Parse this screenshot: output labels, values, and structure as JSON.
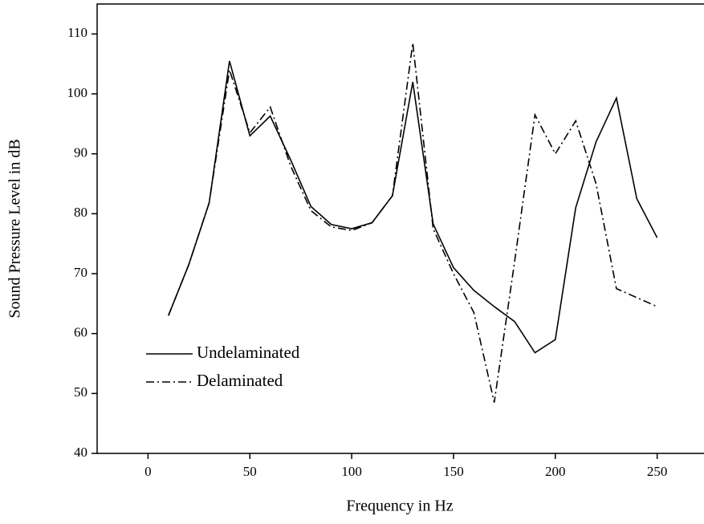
{
  "chart_data": {
    "type": "line",
    "xlabel": "Frequency in Hz",
    "ylabel": "Sound Pressure Level in dB",
    "x": [
      10,
      20,
      30,
      40,
      50,
      60,
      70,
      80,
      90,
      100,
      110,
      120,
      130,
      140,
      150,
      160,
      170,
      180,
      190,
      200,
      210,
      220,
      230,
      240,
      250
    ],
    "series": [
      {
        "name": "Undelaminated",
        "color": "#000000",
        "dash": "solid",
        "values": [
          63,
          71.5,
          81.8,
          105.5,
          93,
          96.3,
          89,
          81.2,
          78.2,
          77.5,
          78.5,
          83,
          102,
          78.3,
          71,
          67.2,
          64.5,
          62,
          56.8,
          59,
          81,
          92,
          99.3,
          82.5,
          76
        ]
      },
      {
        "name": "Delaminated",
        "color": "#000000",
        "dash": "dashdot",
        "values": [
          63,
          71.5,
          81.8,
          104,
          93.5,
          97.8,
          88,
          80.5,
          77.8,
          77.2,
          78.5,
          83,
          108.5,
          77.5,
          70,
          63.5,
          48.5,
          72,
          96.5,
          90,
          95.5,
          85,
          67.5,
          66,
          64.5
        ]
      }
    ],
    "xlim": [
      -25,
      273
    ],
    "xticks": [
      0,
      50,
      100,
      150,
      200,
      250
    ],
    "ylim": [
      40,
      115
    ],
    "yticks": [
      40,
      50,
      60,
      70,
      80,
      90,
      100,
      110
    ],
    "grid": false,
    "legend": "lower left"
  }
}
